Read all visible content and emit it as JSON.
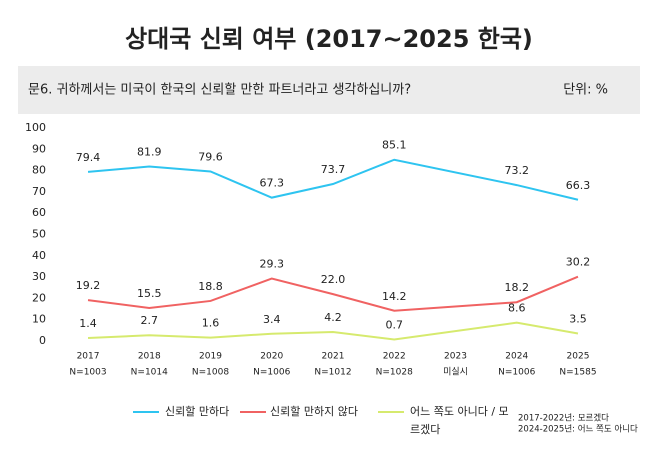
{
  "chart_data": {
    "type": "line",
    "title": "상대국 신뢰 여부 (2017~2025 한국)",
    "question": "문6. 귀하께서는 미국이 한국의 신뢰할 만한 파트너라고 생각하십니까?",
    "unit": "단위: %",
    "x": [
      2017,
      2018,
      2019,
      2020,
      2021,
      2022,
      2024,
      2025
    ],
    "xlim": [
      2016.5,
      2025.5
    ],
    "xticks": [
      2017,
      2018,
      2019,
      2020,
      2021,
      2022,
      2023,
      2024,
      2025
    ],
    "xtick_notes": [
      "N=1003",
      "N=1014",
      "N=1008",
      "N=1006",
      "N=1012",
      "N=1028",
      "미실시",
      "N=1006",
      "N=1585"
    ],
    "ylim": [
      0,
      100
    ],
    "yticks": [
      0,
      10,
      20,
      30,
      40,
      50,
      60,
      70,
      80,
      90,
      100
    ],
    "grid": false,
    "series": [
      {
        "name": "신뢰할 만하다",
        "color": "#2ec4f0",
        "values": [
          79.4,
          81.9,
          79.6,
          67.3,
          73.7,
          85.1,
          73.2,
          66.3
        ]
      },
      {
        "name": "신뢰할 만하지 않다",
        "color": "#f06262",
        "values": [
          19.2,
          15.5,
          18.8,
          29.3,
          22.0,
          14.2,
          18.2,
          30.2
        ],
        "value_labels": [
          "19.2",
          "15.5",
          "18.8",
          "29.3",
          "22.0",
          "14.2",
          "18.2",
          "30.2"
        ]
      },
      {
        "name": "어느 쪽도 아니다 / 모르겠다",
        "color": "#d6ea6e",
        "values": [
          1.4,
          2.7,
          1.6,
          3.4,
          4.2,
          0.7,
          8.6,
          3.5
        ]
      }
    ],
    "footnotes": [
      "2017-2022년: 모르겠다",
      "2024-2025년: 어느 쪽도 아니다"
    ]
  }
}
